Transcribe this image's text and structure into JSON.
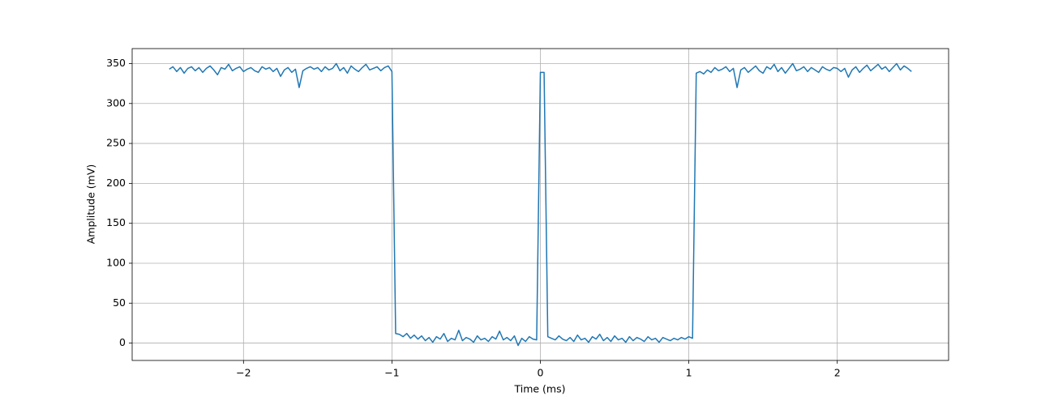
{
  "chart_data": {
    "type": "line",
    "xlabel": "Time (ms)",
    "ylabel": "Amplitude (mV)",
    "xlim": [
      -2.75,
      2.75
    ],
    "ylim": [
      -21.75,
      368.75
    ],
    "xticks": [
      {
        "value": -2,
        "label": "−2"
      },
      {
        "value": -1,
        "label": "−1"
      },
      0,
      1,
      2
    ],
    "yticks": [
      0,
      50,
      100,
      150,
      200,
      250,
      300,
      350
    ],
    "grid": true,
    "x": [
      -2.5,
      -2.475,
      -2.45,
      -2.425,
      -2.4,
      -2.375,
      -2.35,
      -2.325,
      -2.3,
      -2.275,
      -2.25,
      -2.225,
      -2.2,
      -2.175,
      -2.15,
      -2.125,
      -2.1,
      -2.075,
      -2.05,
      -2.025,
      -2,
      -1.975,
      -1.95,
      -1.925,
      -1.9,
      -1.875,
      -1.85,
      -1.825,
      -1.8,
      -1.775,
      -1.75,
      -1.725,
      -1.7,
      -1.675,
      -1.65,
      -1.625,
      -1.6,
      -1.575,
      -1.55,
      -1.525,
      -1.5,
      -1.475,
      -1.45,
      -1.425,
      -1.4,
      -1.375,
      -1.35,
      -1.325,
      -1.3,
      -1.275,
      -1.25,
      -1.225,
      -1.2,
      -1.175,
      -1.15,
      -1.125,
      -1.1,
      -1.075,
      -1.05,
      -1.025,
      -1,
      -0.975,
      -0.95,
      -0.925,
      -0.9,
      -0.875,
      -0.85,
      -0.825,
      -0.8,
      -0.775,
      -0.75,
      -0.725,
      -0.7,
      -0.675,
      -0.65,
      -0.625,
      -0.6,
      -0.575,
      -0.55,
      -0.525,
      -0.5,
      -0.475,
      -0.45,
      -0.425,
      -0.4,
      -0.375,
      -0.35,
      -0.325,
      -0.3,
      -0.275,
      -0.25,
      -0.225,
      -0.2,
      -0.175,
      -0.15,
      -0.125,
      -0.1,
      -0.075,
      -0.05,
      -0.025,
      0,
      0.025,
      0.05,
      0.075,
      0.1,
      0.125,
      0.15,
      0.175,
      0.2,
      0.225,
      0.25,
      0.275,
      0.3,
      0.325,
      0.35,
      0.375,
      0.4,
      0.425,
      0.45,
      0.475,
      0.5,
      0.525,
      0.55,
      0.575,
      0.6,
      0.625,
      0.65,
      0.675,
      0.7,
      0.725,
      0.75,
      0.775,
      0.8,
      0.825,
      0.85,
      0.875,
      0.9,
      0.925,
      0.95,
      0.975,
      1,
      1.025,
      1.05,
      1.075,
      1.1,
      1.125,
      1.15,
      1.175,
      1.2,
      1.225,
      1.25,
      1.275,
      1.3,
      1.325,
      1.35,
      1.375,
      1.4,
      1.425,
      1.45,
      1.475,
      1.5,
      1.525,
      1.55,
      1.575,
      1.6,
      1.625,
      1.65,
      1.675,
      1.7,
      1.725,
      1.75,
      1.775,
      1.8,
      1.825,
      1.85,
      1.875,
      1.9,
      1.925,
      1.95,
      1.975,
      2,
      2.025,
      2.05,
      2.075,
      2.1,
      2.125,
      2.15,
      2.175,
      2.2,
      2.225,
      2.25,
      2.275,
      2.3,
      2.325,
      2.35,
      2.375,
      2.4,
      2.425,
      2.45,
      2.475,
      2.5
    ],
    "series": [
      {
        "color": "#1f77b4",
        "values": [
          343,
          346,
          340,
          345,
          338,
          344,
          346,
          341,
          345,
          339,
          344,
          347,
          342,
          336,
          345,
          343,
          349,
          341,
          344,
          346,
          340,
          343,
          345,
          341,
          339,
          346,
          343,
          345,
          340,
          344,
          334,
          342,
          345,
          339,
          343,
          320,
          341,
          344,
          346,
          343,
          345,
          340,
          346,
          342,
          344,
          350,
          341,
          345,
          338,
          347,
          343,
          340,
          345,
          349,
          342,
          344,
          346,
          341,
          345,
          347,
          340,
          12,
          11,
          8,
          12,
          6,
          10,
          5,
          9,
          3,
          7,
          1,
          8,
          5,
          12,
          2,
          6,
          4,
          16,
          3,
          7,
          5,
          1,
          9,
          4,
          6,
          2,
          8,
          5,
          15,
          4,
          7,
          3,
          9,
          -3,
          6,
          2,
          8,
          5,
          4,
          339,
          339,
          8,
          6,
          4,
          9,
          5,
          3,
          7,
          2,
          10,
          4,
          6,
          1,
          8,
          5,
          11,
          3,
          7,
          2,
          9,
          4,
          6,
          1,
          8,
          3,
          7,
          5,
          2,
          8,
          4,
          6,
          1,
          7,
          5,
          3,
          6,
          4,
          7,
          5,
          8,
          6,
          338,
          340,
          337,
          342,
          339,
          345,
          341,
          343,
          346,
          340,
          344,
          320,
          342,
          345,
          339,
          343,
          347,
          341,
          338,
          346,
          343,
          349,
          340,
          345,
          338,
          344,
          350,
          341,
          343,
          346,
          340,
          345,
          342,
          339,
          346,
          343,
          341,
          345,
          344,
          340,
          344,
          333,
          342,
          346,
          339,
          344,
          348,
          341,
          345,
          349,
          343,
          346,
          340,
          345,
          350,
          342,
          347,
          344,
          340
        ]
      }
    ]
  }
}
